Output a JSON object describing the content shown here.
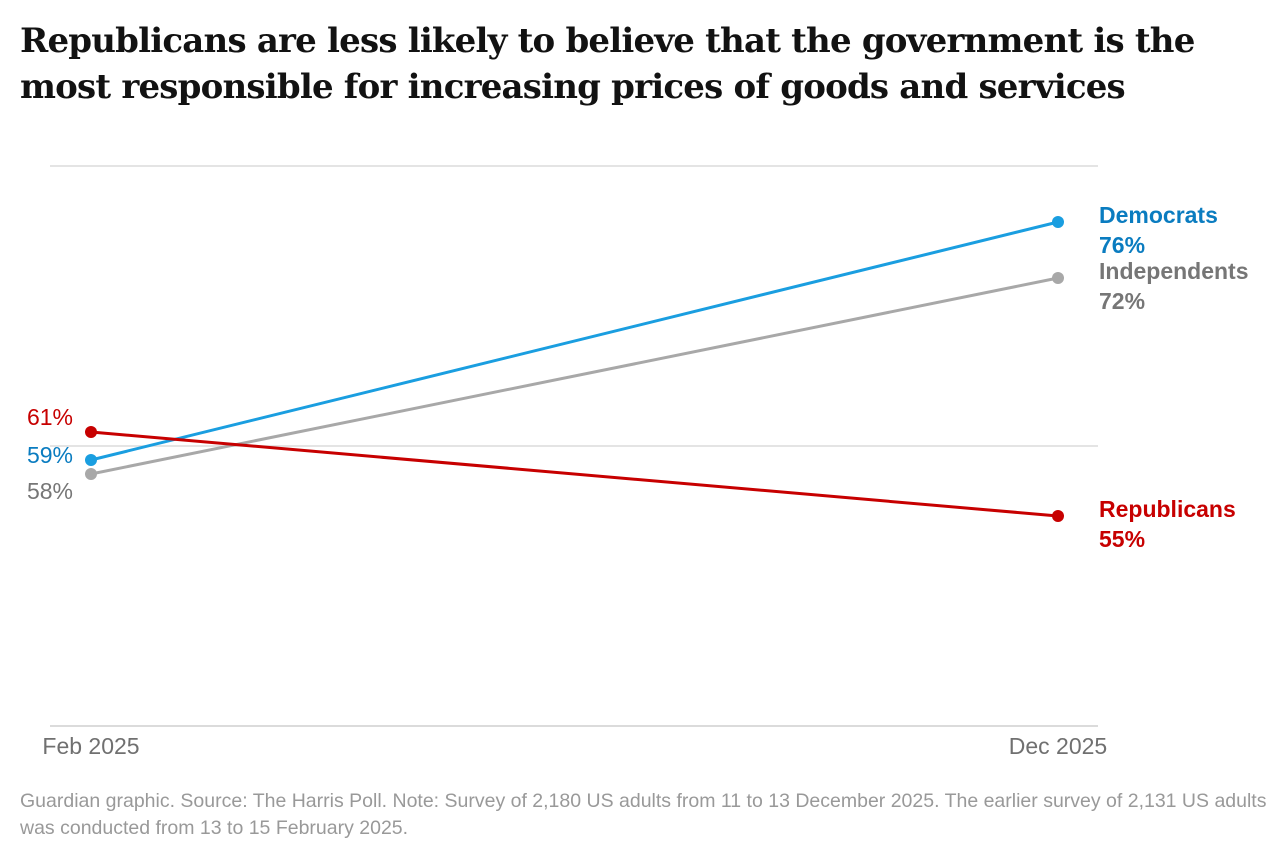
{
  "chart_data": {
    "type": "line",
    "title": "Republicans are less likely to believe that the government is the most responsible for increasing prices of goods and services",
    "x": [
      "Feb 2025",
      "Dec 2025"
    ],
    "ylim": [
      40,
      80
    ],
    "gridlines": [
      40,
      60,
      80
    ],
    "grid": true,
    "legend": "direct labels at line ends (right)",
    "series": [
      {
        "name": "Democrats",
        "values": [
          59,
          76
        ],
        "start_label": "59%",
        "end_label": "76%",
        "line_color": "#1a9ee0",
        "text_color": "#0a7cc0"
      },
      {
        "name": "Independents",
        "values": [
          58,
          72
        ],
        "start_label": "58%",
        "end_label": "72%",
        "line_color": "#a8a8a8",
        "text_color": "#767676"
      },
      {
        "name": "Republicans",
        "values": [
          61,
          55
        ],
        "start_label": "61%",
        "end_label": "55%",
        "line_color": "#c70000",
        "text_color": "#c70000"
      }
    ]
  },
  "footer": "Guardian graphic. Source: The Harris Poll. Note: Survey of 2,180 US adults from 11 to 13 December 2025. The earlier survey of 2,131 US adults was conducted from 13 to 15 February 2025."
}
